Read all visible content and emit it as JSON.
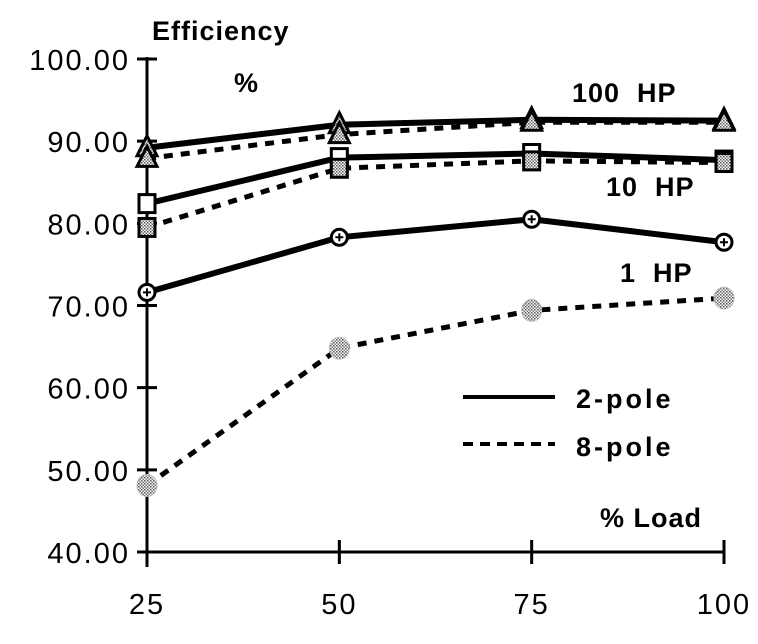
{
  "chart_data": {
    "type": "line",
    "title": "Efficiency",
    "ylabel": "%",
    "xlabel": "% Load",
    "x": [
      25,
      50,
      75,
      100
    ],
    "ylim": [
      40,
      100
    ],
    "yticks": [
      "40.00",
      "50.00",
      "60.00",
      "70.00",
      "80.00",
      "90.00",
      "100.00"
    ],
    "xticks": [
      "25",
      "50",
      "75",
      "100"
    ],
    "grid": false,
    "legend": {
      "placement": "right",
      "entries": [
        {
          "label": "2-pole",
          "style": "solid"
        },
        {
          "label": "8-pole",
          "style": "dashed"
        }
      ]
    },
    "group_labels": [
      "100  HP",
      "10  HP",
      "1  HP"
    ],
    "series": [
      {
        "name": "100 HP 2-pole",
        "group": "100 HP",
        "poles": "2-pole",
        "marker": "triangle",
        "values": [
          89.2,
          92.0,
          92.6,
          92.5
        ]
      },
      {
        "name": "100 HP 8-pole",
        "group": "100 HP",
        "poles": "8-pole",
        "marker": "triangle",
        "values": [
          87.9,
          90.8,
          92.3,
          92.3
        ]
      },
      {
        "name": "10 HP 2-pole",
        "group": "10 HP",
        "poles": "2-pole",
        "marker": "square-open",
        "values": [
          82.4,
          88.0,
          88.5,
          87.7
        ]
      },
      {
        "name": "10 HP 8-pole",
        "group": "10 HP",
        "poles": "8-pole",
        "marker": "square",
        "values": [
          79.5,
          86.7,
          87.6,
          87.4
        ]
      },
      {
        "name": "1 HP 2-pole",
        "group": "1 HP",
        "poles": "2-pole",
        "marker": "circle-plus",
        "values": [
          71.6,
          78.3,
          80.5,
          77.7
        ]
      },
      {
        "name": "1 HP 8-pole",
        "group": "1 HP",
        "poles": "8-pole",
        "marker": "circle-stipple",
        "values": [
          48.1,
          64.8,
          69.4,
          70.9
        ]
      }
    ]
  }
}
